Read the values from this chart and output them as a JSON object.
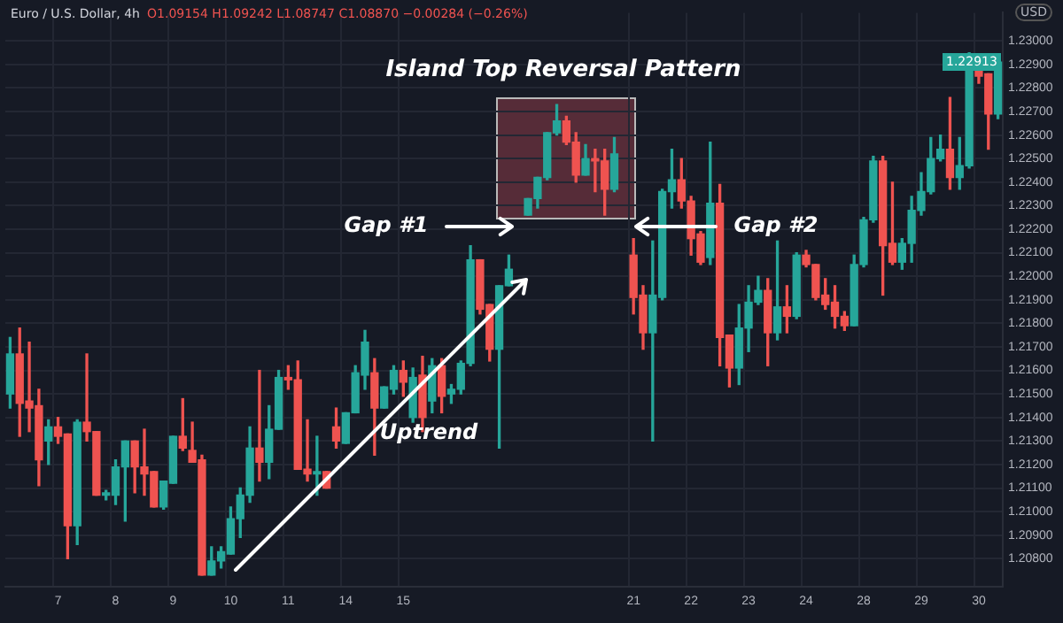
{
  "chart_data": {
    "type": "candlestick",
    "title": "Euro / U.S. Dollar, 4h",
    "subtitle": "O1.09154 H1.09242 L1.08747 C1.08870 −0.00284 (−0.26%)",
    "ylabel": "USD",
    "categories": [
      null,
      null,
      null,
      null,
      null,
      "7",
      null,
      null,
      null,
      null,
      null,
      "8",
      null,
      null,
      null,
      null,
      null,
      "9",
      null,
      null,
      null,
      null,
      null,
      "10",
      null,
      null,
      null,
      null,
      null,
      "11",
      null,
      null,
      null,
      null,
      null,
      "14",
      null,
      null,
      null,
      null,
      null,
      "15",
      null,
      null,
      null,
      null,
      null,
      null,
      null,
      null,
      null,
      null,
      null,
      null,
      null,
      null,
      null,
      null,
      null,
      null,
      null,
      null,
      null,
      null,
      null,
      "21",
      null,
      null,
      null,
      null,
      null,
      "22",
      null,
      null,
      null,
      null,
      null,
      "23",
      null,
      null,
      null,
      null,
      null,
      "24",
      null,
      null,
      null,
      null,
      null,
      "28",
      null,
      null,
      null,
      null,
      null,
      "29",
      null,
      null,
      null,
      null,
      null,
      "30",
      null,
      null
    ],
    "ohlc": [
      [
        1.215,
        1.2174,
        1.2144,
        1.2167
      ],
      [
        1.2167,
        1.2178,
        1.2132,
        1.2146
      ],
      [
        1.2147,
        1.2172,
        1.2134,
        1.2144
      ],
      [
        1.2145,
        1.2152,
        1.2111,
        1.2122
      ],
      [
        1.213,
        1.2139,
        1.212,
        1.2136
      ],
      [
        1.2136,
        1.214,
        1.2129,
        1.2132
      ],
      [
        1.2133,
        1.2133,
        1.208,
        1.2094
      ],
      [
        1.2094,
        1.2139,
        1.2086,
        1.2138
      ],
      [
        1.2138,
        1.2167,
        1.213,
        1.2134
      ],
      [
        1.2134,
        1.2134,
        1.2107,
        1.2107
      ],
      [
        1.2107,
        1.2109,
        1.2105,
        1.2108
      ],
      [
        1.2107,
        1.2122,
        1.2103,
        1.2119
      ],
      [
        1.2119,
        1.213,
        1.2096,
        1.213
      ],
      [
        1.213,
        1.213,
        1.2108,
        1.2119
      ],
      [
        1.2119,
        1.2135,
        1.2107,
        1.2116
      ],
      [
        1.2117,
        1.2117,
        1.2102,
        1.2102
      ],
      [
        1.2102,
        1.2113,
        1.2101,
        1.2113
      ],
      [
        1.2112,
        1.2132,
        1.2112,
        1.2132
      ],
      [
        1.2132,
        1.2148,
        1.2126,
        1.2127
      ],
      [
        1.2126,
        1.2138,
        1.2121,
        1.2121
      ],
      [
        1.2122,
        1.2124,
        1.2073,
        1.2073
      ],
      [
        1.2073,
        1.2085,
        1.2073,
        1.2079
      ],
      [
        1.2079,
        1.2085,
        1.2076,
        1.2083
      ],
      [
        1.2082,
        1.2102,
        1.2082,
        1.2097
      ],
      [
        1.2097,
        1.211,
        1.2089,
        1.2107
      ],
      [
        1.2107,
        1.2136,
        1.2104,
        1.2127
      ],
      [
        1.2127,
        1.216,
        1.2113,
        1.2121
      ],
      [
        1.2121,
        1.2145,
        1.2114,
        1.2135
      ],
      [
        1.2135,
        1.216,
        1.2135,
        1.2157
      ],
      [
        1.2157,
        1.2162,
        1.2152,
        1.2156
      ],
      [
        1.2156,
        1.2164,
        1.2118,
        1.2118
      ],
      [
        1.2118,
        1.2139,
        1.2113,
        1.2116
      ],
      [
        1.2116,
        1.2132,
        1.2107,
        1.2117
      ],
      [
        1.2117,
        1.2117,
        1.211,
        1.211
      ],
      [
        1.2136,
        1.2144,
        1.2127,
        1.213
      ],
      [
        1.2129,
        1.2142,
        1.2129,
        1.2142
      ],
      [
        1.2142,
        1.2162,
        1.2142,
        1.2159
      ],
      [
        1.2158,
        1.2177,
        1.2152,
        1.2172
      ],
      [
        1.2159,
        1.2165,
        1.2124,
        1.2144
      ],
      [
        1.2144,
        1.2153,
        1.2144,
        1.2153
      ],
      [
        1.2152,
        1.2162,
        1.215,
        1.216
      ],
      [
        1.216,
        1.2164,
        1.2149,
        1.2155
      ],
      [
        1.214,
        1.2161,
        1.2138,
        1.2157
      ],
      [
        1.2158,
        1.2166,
        1.2134,
        1.214
      ],
      [
        1.2147,
        1.2165,
        1.2142,
        1.2162
      ],
      [
        1.2162,
        1.2165,
        1.2142,
        1.2149
      ],
      [
        1.215,
        1.2154,
        1.2146,
        1.2152
      ],
      [
        1.2152,
        1.2164,
        1.215,
        1.2163
      ],
      [
        1.2163,
        1.2213,
        1.2162,
        1.2207
      ],
      [
        1.2207,
        1.2207,
        1.2184,
        1.2186
      ],
      [
        1.2188,
        1.2188,
        1.2164,
        1.2169
      ],
      [
        1.2169,
        1.2196,
        1.2127,
        1.2196
      ],
      [
        1.2196,
        1.2209,
        1.2196,
        1.2203
      ],
      null,
      [
        1.2226,
        1.2233,
        1.2226,
        1.2233
      ],
      [
        1.2233,
        1.2242,
        1.2229,
        1.2242
      ],
      [
        1.2242,
        1.2261,
        1.2241,
        1.2261
      ],
      [
        1.2261,
        1.2273,
        1.226,
        1.2266
      ],
      [
        1.2266,
        1.2268,
        1.2256,
        1.2257
      ],
      [
        1.2257,
        1.2261,
        1.224,
        1.2243
      ],
      [
        1.2243,
        1.2256,
        1.2243,
        1.225
      ],
      [
        1.225,
        1.2254,
        1.2236,
        1.2249
      ],
      [
        1.2249,
        1.2254,
        1.2226,
        1.2237
      ],
      [
        1.2237,
        1.2259,
        1.2236,
        1.2252
      ],
      null,
      [
        1.2209,
        1.2216,
        1.2184,
        1.2191
      ],
      [
        1.2192,
        1.2196,
        1.2169,
        1.2176
      ],
      [
        1.2176,
        1.2215,
        1.213,
        1.2192
      ],
      [
        1.2191,
        1.2237,
        1.219,
        1.2236
      ],
      [
        1.2236,
        1.2254,
        1.2229,
        1.2241
      ],
      [
        1.2241,
        1.225,
        1.2229,
        1.2232
      ],
      [
        1.2232,
        1.2234,
        1.2209,
        1.2216
      ],
      [
        1.2218,
        1.2219,
        1.2205,
        1.2206
      ],
      [
        1.2208,
        1.2257,
        1.2205,
        1.2231
      ],
      [
        1.2231,
        1.2239,
        1.2162,
        1.2174
      ],
      [
        1.2175,
        1.2175,
        1.2153,
        1.2161
      ],
      [
        1.2161,
        1.2188,
        1.2154,
        1.2178
      ],
      [
        1.2178,
        1.2196,
        1.2168,
        1.2189
      ],
      [
        1.2189,
        1.22,
        1.2188,
        1.2194
      ],
      [
        1.2194,
        1.2199,
        1.2162,
        1.2176
      ],
      [
        1.2176,
        1.2215,
        1.2173,
        1.2187
      ],
      [
        1.2187,
        1.2196,
        1.2176,
        1.2183
      ],
      [
        1.2183,
        1.221,
        1.2182,
        1.2209
      ],
      [
        1.2209,
        1.2211,
        1.2204,
        1.2205
      ],
      [
        1.2205,
        1.2205,
        1.219,
        1.2191
      ],
      [
        1.2192,
        1.2199,
        1.2186,
        1.2188
      ],
      [
        1.2189,
        1.2196,
        1.2178,
        1.2183
      ],
      [
        1.2183,
        1.2185,
        1.2177,
        1.2179
      ],
      [
        1.2179,
        1.2209,
        1.2179,
        1.2205
      ],
      [
        1.2205,
        1.2225,
        1.2204,
        1.2224
      ],
      [
        1.2224,
        1.2251,
        1.2223,
        1.2249
      ],
      [
        1.2249,
        1.2251,
        1.2192,
        1.2213
      ],
      [
        1.2214,
        1.224,
        1.2205,
        1.2206
      ],
      [
        1.2206,
        1.2216,
        1.2203,
        1.2214
      ],
      [
        1.2214,
        1.2234,
        1.2206,
        1.2228
      ],
      [
        1.2228,
        1.2244,
        1.2226,
        1.2236
      ],
      [
        1.2236,
        1.2259,
        1.2235,
        1.225
      ],
      [
        1.225,
        1.226,
        1.2249,
        1.2254
      ],
      [
        1.2254,
        1.2276,
        1.2237,
        1.2242
      ],
      [
        1.2242,
        1.2259,
        1.2237,
        1.2247
      ],
      [
        1.2247,
        1.2295,
        1.2246,
        1.2291
      ],
      [
        1.2291,
        1.2292,
        1.2282,
        1.2285
      ],
      [
        1.2286,
        1.2286,
        1.2254,
        1.2269
      ],
      [
        1.2269,
        1.2292,
        1.2267,
        1.2291
      ]
    ],
    "colors": [
      "#26a69a",
      "#ef5350",
      "#ef5350",
      "#ef5350",
      "#26a69a",
      "#ef5350",
      "#ef5350",
      "#26a69a",
      "#ef5350",
      "#ef5350",
      "#26a69a",
      "#26a69a",
      "#26a69a",
      "#ef5350",
      "#ef5350",
      "#ef5350",
      "#26a69a",
      "#26a69a",
      "#ef5350",
      "#ef5350",
      "#ef5350",
      "#26a69a",
      "#26a69a",
      "#26a69a",
      "#26a69a",
      "#26a69a",
      "#ef5350",
      "#26a69a",
      "#26a69a",
      "#ef5350",
      "#ef5350",
      "#ef5350",
      "#26a69a",
      "#ef5350",
      "#ef5350",
      "#26a69a",
      "#26a69a",
      "#26a69a",
      "#ef5350",
      "#26a69a",
      "#26a69a",
      "#ef5350",
      "#26a69a",
      "#ef5350",
      "#26a69a",
      "#ef5350",
      "#26a69a",
      "#26a69a",
      "#26a69a",
      "#ef5350",
      "#ef5350",
      "#26a69a",
      "#26a69a",
      null,
      "#26a69a",
      "#26a69a",
      "#26a69a",
      "#26a69a",
      "#ef5350",
      "#ef5350",
      "#26a69a",
      "#ef5350",
      "#ef5350",
      "#26a69a",
      null,
      "#ef5350",
      "#ef5350",
      "#26a69a",
      "#26a69a",
      "#26a69a",
      "#ef5350",
      "#ef5350",
      "#ef5350",
      "#26a69a",
      "#ef5350",
      "#ef5350",
      "#26a69a",
      "#26a69a",
      "#26a69a",
      "#ef5350",
      "#26a69a",
      "#ef5350",
      "#26a69a",
      "#ef5350",
      "#ef5350",
      "#ef5350",
      "#ef5350",
      "#ef5350",
      "#26a69a",
      "#26a69a",
      "#26a69a",
      "#ef5350",
      "#ef5350",
      "#26a69a",
      "#26a69a",
      "#26a69a",
      "#26a69a",
      "#26a69a",
      "#ef5350",
      "#26a69a",
      "#26a69a",
      "#ef5350",
      "#ef5350",
      "#26a69a"
    ],
    "ylim": [
      1.2068,
      1.2312
    ],
    "yticks": [
      {
        "value": 1.208,
        "label": "1.20800"
      },
      {
        "value": 1.209,
        "label": "1.20900"
      },
      {
        "value": 1.21,
        "label": "1.21000"
      },
      {
        "value": 1.211,
        "label": "1.21100"
      },
      {
        "value": 1.212,
        "label": "1.21200"
      },
      {
        "value": 1.213,
        "label": "1.21300"
      },
      {
        "value": 1.214,
        "label": "1.21400"
      },
      {
        "value": 1.215,
        "label": "1.21500"
      },
      {
        "value": 1.216,
        "label": "1.21600"
      },
      {
        "value": 1.217,
        "label": "1.21700"
      },
      {
        "value": 1.218,
        "label": "1.21800"
      },
      {
        "value": 1.219,
        "label": "1.21900"
      },
      {
        "value": 1.22,
        "label": "1.22000"
      },
      {
        "value": 1.221,
        "label": "1.22100"
      },
      {
        "value": 1.222,
        "label": "1.22200"
      },
      {
        "value": 1.223,
        "label": "1.22300"
      },
      {
        "value": 1.224,
        "label": "1.22400"
      },
      {
        "value": 1.225,
        "label": "1.22500"
      },
      {
        "value": 1.226,
        "label": "1.22600"
      },
      {
        "value": 1.227,
        "label": "1.22700"
      },
      {
        "value": 1.228,
        "label": "1.22800"
      },
      {
        "value": 1.229,
        "label": "1.22900"
      },
      {
        "value": 1.23,
        "label": "1.23000"
      }
    ],
    "grid": true,
    "annotations": [
      "Island Top Reversal Pattern",
      "Gap #1",
      "Gap #2",
      "Uptrend",
      {
        "text": "1.22913",
        "y": 1.22913
      }
    ]
  }
}
